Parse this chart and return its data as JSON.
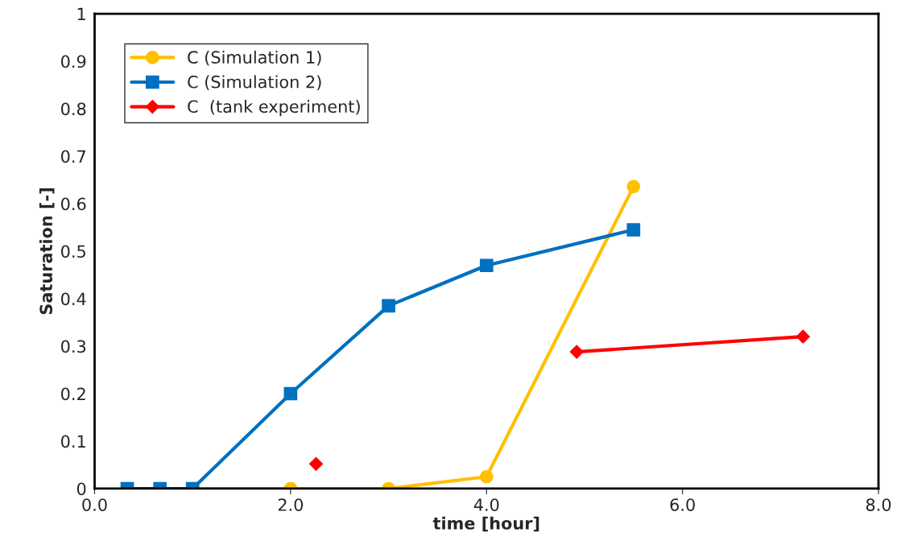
{
  "chart_data": {
    "type": "line",
    "xlabel": "time [hour]",
    "ylabel": "Saturation [-]",
    "xlim": [
      0,
      8
    ],
    "xticks": [
      {
        "value": 0,
        "label": "0.0"
      },
      {
        "value": 2,
        "label": "2.0"
      },
      {
        "value": 4,
        "label": "4.0"
      },
      {
        "value": 6,
        "label": "6.0"
      },
      {
        "value": 8,
        "label": "8.0"
      }
    ],
    "ylim": [
      0,
      1
    ],
    "yticks": [
      0,
      0.1,
      0.2,
      0.3,
      0.4,
      0.5,
      0.6,
      0.7,
      0.8,
      0.9,
      1
    ],
    "grid": false,
    "legend": "top left",
    "series": [
      {
        "name": "C (Simulation 1)",
        "color": "#ffc000",
        "marker": "circle",
        "x": [
          1.0,
          2.0,
          3.0,
          4.0,
          5.5
        ],
        "values": [
          0,
          0,
          0,
          0.025,
          0.636
        ]
      },
      {
        "name": "C (Simulation 2)",
        "color": "#0070c0",
        "marker": "square",
        "x": [
          0.333,
          0.667,
          1.0,
          2.0,
          3.0,
          4.0,
          5.5
        ],
        "values": [
          0,
          0,
          0,
          0.2,
          0.385,
          0.47,
          0.545
        ]
      },
      {
        "name": "C  (tank experiment)",
        "color": "#ff0000",
        "marker": "diamond",
        "x": [
          4.92,
          7.23
        ],
        "values": [
          0.288,
          0.32
        ]
      },
      {
        "type": "scatter",
        "color": "#ff0000",
        "marker": "diamond",
        "x": [
          2.26
        ],
        "values": [
          0.052
        ]
      }
    ]
  }
}
